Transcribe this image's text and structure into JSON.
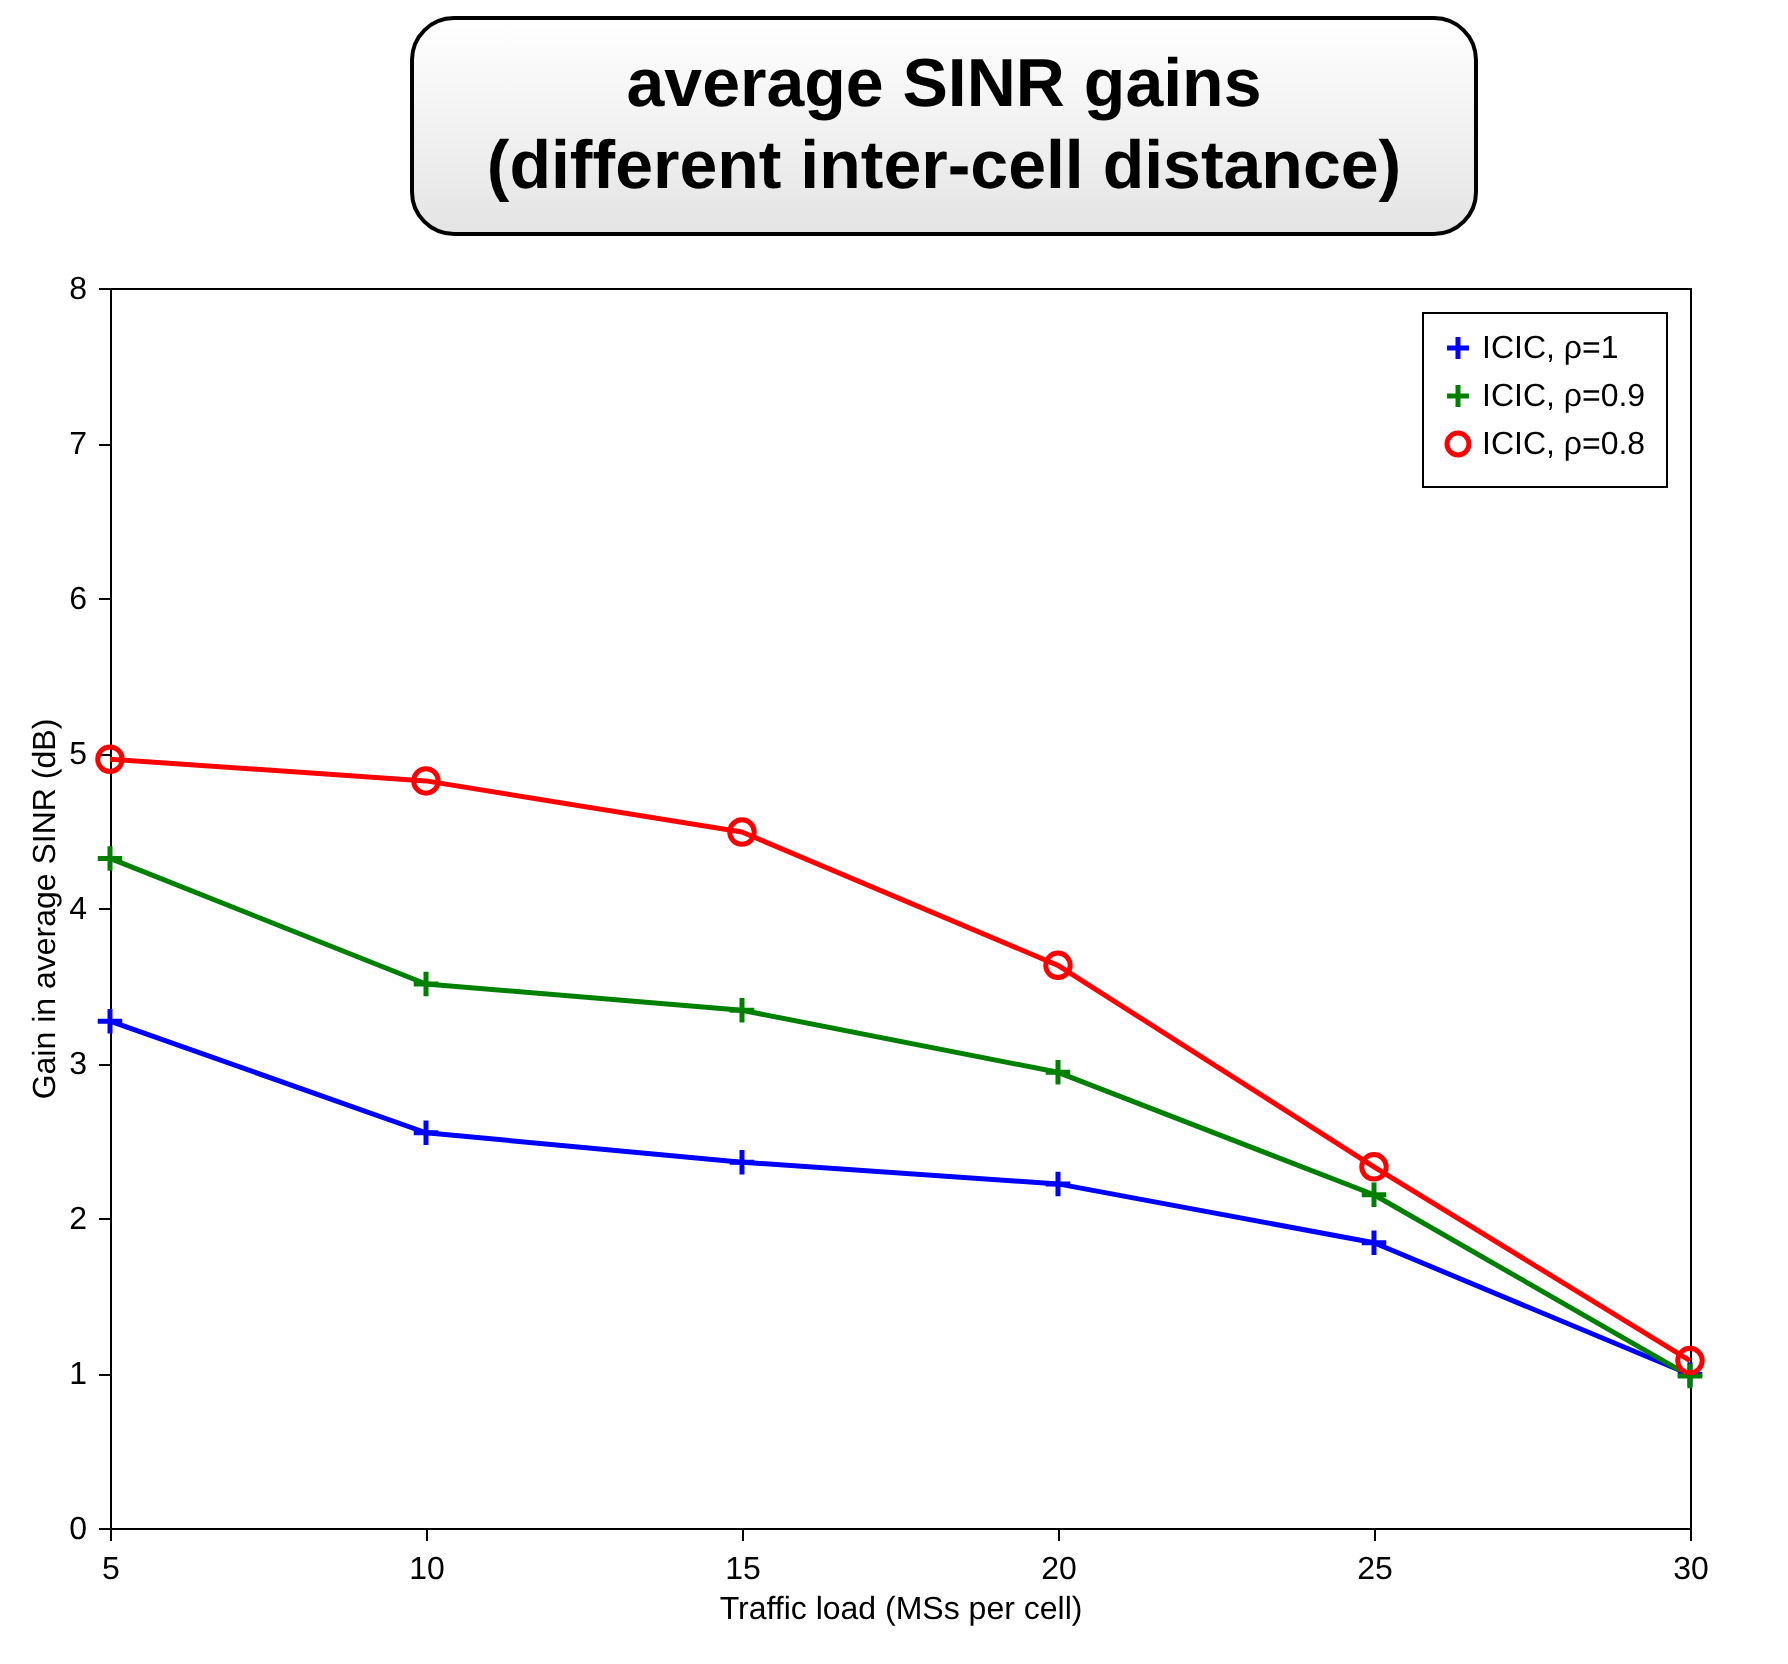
{
  "chart_data": {
    "type": "line",
    "title": "average SINR gains\n(different inter-cell distance)",
    "xlabel": "Traffic load (MSs per cell)",
    "ylabel": "Gain in average SINR (dB)",
    "x": [
      5,
      10,
      15,
      20,
      25,
      30
    ],
    "series": [
      {
        "name": "ICIC, ρ=1",
        "color": "#0000ff",
        "marker": "cross",
        "values": [
          3.27,
          2.55,
          2.36,
          2.22,
          1.84,
          0.99
        ]
      },
      {
        "name": "ICIC, ρ=0.9",
        "color": "#008000",
        "marker": "cross",
        "values": [
          4.32,
          3.51,
          3.34,
          2.94,
          2.15,
          0.98
        ]
      },
      {
        "name": "ICIC, ρ=0.8",
        "color": "#ff0000",
        "marker": "circle",
        "values": [
          4.96,
          4.82,
          4.49,
          3.63,
          2.33,
          1.08
        ]
      }
    ],
    "xlim": [
      5,
      30
    ],
    "xticks": [
      5,
      10,
      15,
      20,
      25,
      30
    ],
    "ylim": [
      0,
      8
    ],
    "yticks": [
      0,
      1,
      2,
      3,
      4,
      5,
      6,
      7,
      8
    ],
    "grid": false,
    "legend": "top right",
    "line_style": "solid"
  }
}
